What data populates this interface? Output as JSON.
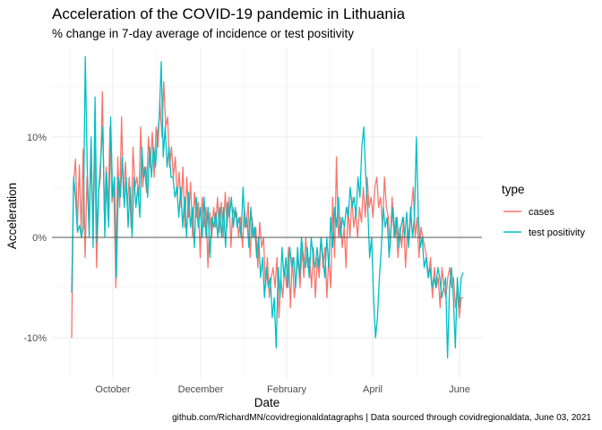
{
  "chart_data": {
    "type": "line",
    "title": "Acceleration of the COVID-19 pandemic in Lithuania",
    "subtitle": "% change in 7-day average of incidence or test positivity",
    "xlabel": "Date",
    "ylabel": "Acceleration",
    "caption": "github.com/RichardMN/covidregionaldatagraphs | Data sourced through covidregionaldata, June 03, 2021",
    "x_ticks": [
      "October",
      "December",
      "February",
      "April",
      "June"
    ],
    "y_ticks": [
      "-10%",
      "0%",
      "10%"
    ],
    "ylim": [
      -0.14,
      0.19
    ],
    "legend": {
      "title": "type",
      "position": "right"
    },
    "hline": 0,
    "series": [
      {
        "name": "cases",
        "color": "#F8766D",
        "values": [
          -0.1,
          0.055,
          0.078,
          0.01,
          0.072,
          0.005,
          0.088,
          -0.02,
          0.06,
          0.01,
          0.09,
          0.01,
          0.095,
          -0.03,
          0.045,
          0.06,
          0.145,
          0.025,
          0.07,
          0.02,
          0.11,
          0.035,
          0.05,
          -0.05,
          0.08,
          0.03,
          0.12,
          0.04,
          0.075,
          0.03,
          0.06,
          0.01,
          0.09,
          0.05,
          0.06,
          0.04,
          0.11,
          0.05,
          0.07,
          0.045,
          0.1,
          0.07,
          0.105,
          0.06,
          0.11,
          0.09,
          0.135,
          0.1,
          0.155,
          0.11,
          0.12,
          0.07,
          0.09,
          0.06,
          0.08,
          0.04,
          0.065,
          0.03,
          0.07,
          0.01,
          0.06,
          0.02,
          0.055,
          0.0,
          0.045,
          0.02,
          0.035,
          -0.02,
          0.04,
          0.01,
          0.03,
          -0.03,
          0.025,
          0.0,
          0.03,
          0.01,
          0.04,
          0.005,
          0.035,
          0.0,
          0.045,
          0.01,
          0.04,
          -0.01,
          0.03,
          0.02,
          0.025,
          0.0,
          0.02,
          -0.01,
          0.03,
          0.01,
          0.035,
          -0.02,
          0.02,
          0.0,
          0.01,
          -0.03,
          0.015,
          -0.01,
          0.0,
          -0.05,
          -0.02,
          -0.06,
          -0.04,
          -0.03,
          -0.05,
          -0.02,
          -0.08,
          -0.04,
          -0.06,
          -0.03,
          -0.05,
          -0.01,
          -0.07,
          -0.02,
          -0.06,
          -0.04,
          -0.02,
          -0.05,
          -0.01,
          -0.04,
          0.0,
          -0.03,
          -0.02,
          -0.05,
          -0.01,
          -0.06,
          -0.02,
          -0.04,
          0.0,
          -0.03,
          -0.01,
          -0.06,
          -0.02,
          -0.05,
          0.04,
          -0.02,
          0.08,
          0.0,
          0.02,
          -0.01,
          0.01,
          -0.03,
          0.03,
          0.0,
          0.04,
          0.01,
          0.025,
          0.0,
          0.03,
          0.015,
          0.05,
          0.02,
          0.06,
          0.03,
          0.04,
          0.02,
          0.05,
          0.06,
          0.03,
          0.04,
          0.01,
          0.06,
          0.03,
          0.02,
          -0.01,
          0.04,
          0.0,
          0.02,
          -0.02,
          0.01,
          -0.01,
          0.02,
          -0.03,
          0.01,
          0.0,
          0.03,
          0.05,
          0.0,
          0.02,
          -0.02,
          0.01,
          0.0,
          -0.01,
          -0.02,
          -0.04,
          -0.02,
          -0.06,
          -0.03,
          -0.05,
          -0.04,
          -0.07,
          -0.03,
          -0.05,
          -0.06,
          -0.04,
          -0.03,
          -0.05,
          -0.04,
          -0.07,
          -0.05,
          -0.08,
          -0.06,
          -0.06
        ]
      },
      {
        "name": "test positivity",
        "color": "#00BFC4",
        "values": [
          -0.055,
          0.06,
          0.04,
          0.005,
          0.012,
          0.0,
          0.01,
          0.18,
          0.07,
          0.0,
          0.1,
          -0.01,
          0.14,
          -0.005,
          0.05,
          0.08,
          0.11,
          0.0,
          0.065,
          0.01,
          0.12,
          0.04,
          0.06,
          -0.04,
          0.06,
          0.04,
          0.08,
          0.03,
          0.06,
          0.01,
          0.05,
          0.0,
          0.06,
          0.03,
          0.05,
          0.02,
          0.09,
          0.06,
          0.07,
          0.04,
          0.09,
          0.06,
          0.09,
          0.07,
          0.1,
          0.12,
          0.175,
          0.08,
          0.11,
          0.07,
          0.09,
          0.06,
          0.06,
          0.04,
          0.05,
          0.02,
          0.05,
          0.01,
          0.04,
          0.0,
          0.045,
          0.01,
          0.03,
          -0.01,
          0.04,
          0.01,
          0.03,
          0.0,
          0.04,
          0.0,
          0.03,
          -0.02,
          0.02,
          0.01,
          0.025,
          0.0,
          0.03,
          0.0,
          0.03,
          -0.01,
          0.035,
          0.02,
          0.04,
          0.01,
          0.03,
          0.01,
          0.02,
          0.0,
          0.05,
          0.01,
          0.02,
          -0.01,
          0.03,
          0.0,
          0.01,
          -0.02,
          0.0,
          -0.04,
          -0.02,
          -0.06,
          -0.03,
          -0.05,
          -0.04,
          -0.08,
          -0.06,
          -0.11,
          -0.03,
          -0.06,
          -0.01,
          -0.04,
          -0.02,
          -0.05,
          -0.01,
          -0.03,
          -0.02,
          -0.05,
          -0.01,
          -0.04,
          0.0,
          -0.02,
          -0.03,
          -0.01,
          -0.04,
          0.0,
          -0.02,
          -0.03,
          -0.01,
          -0.03,
          0.0,
          -0.02,
          -0.04,
          0.0,
          -0.03,
          0.02,
          -0.01,
          0.03,
          0.01,
          0.04,
          0.0,
          0.02,
          0.01,
          0.03,
          0.02,
          0.05,
          0.03,
          0.04,
          0.02,
          0.06,
          0.04,
          0.09,
          0.11,
          0.06,
          0.03,
          -0.02,
          0.0,
          -0.06,
          -0.1,
          -0.08,
          -0.04,
          -0.01,
          0.03,
          0.01,
          0.02,
          -0.02,
          0.01,
          0.03,
          0.0,
          0.02,
          -0.01,
          0.01,
          0.02,
          0.0,
          0.025,
          -0.01,
          0.03,
          0.0,
          0.02,
          0.1,
          0.02,
          -0.01,
          0.0,
          -0.03,
          -0.02,
          -0.04,
          -0.03,
          -0.05,
          -0.04,
          -0.05,
          -0.03,
          -0.04,
          -0.06,
          -0.05,
          -0.04,
          -0.12,
          -0.05,
          -0.03,
          -0.06,
          -0.11,
          -0.04,
          -0.07,
          -0.04,
          -0.035
        ]
      }
    ]
  }
}
